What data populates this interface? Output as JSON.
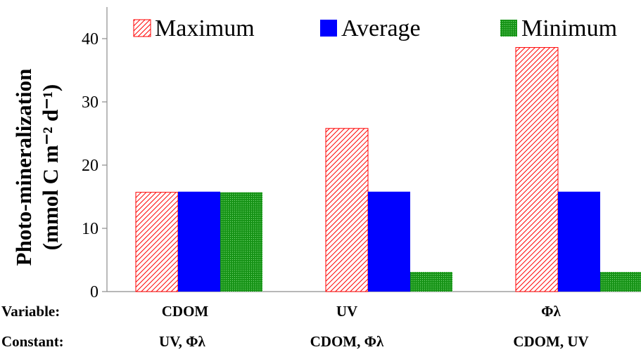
{
  "chart_data": {
    "type": "bar",
    "ylabel_line1": "Photo-mineralization",
    "ylabel_line2": "(mmol C m⁻² d⁻¹)",
    "ylim": [
      0,
      45
    ],
    "yticks": [
      0,
      10,
      20,
      30,
      40
    ],
    "grid": false,
    "legend_position": "top",
    "row_labels": {
      "variable": "Variable:",
      "constant": "Constant:"
    },
    "categories": [
      {
        "variable": "CDOM",
        "constant": "UV, Φλ"
      },
      {
        "variable": "UV",
        "constant": "CDOM, Φλ"
      },
      {
        "variable": "Φλ",
        "constant": "CDOM, UV"
      }
    ],
    "series": [
      {
        "name": "Maximum",
        "values": [
          15.7,
          25.8,
          38.6
        ],
        "color": "#ff0000",
        "pattern": "diagonal-hatch"
      },
      {
        "name": "Average",
        "values": [
          15.8,
          15.8,
          15.8
        ],
        "color": "#0000ff",
        "pattern": "solid"
      },
      {
        "name": "Minimum",
        "values": [
          15.7,
          3.1,
          3.1
        ],
        "color": "#1a9b1a",
        "pattern": "dotted"
      }
    ]
  }
}
